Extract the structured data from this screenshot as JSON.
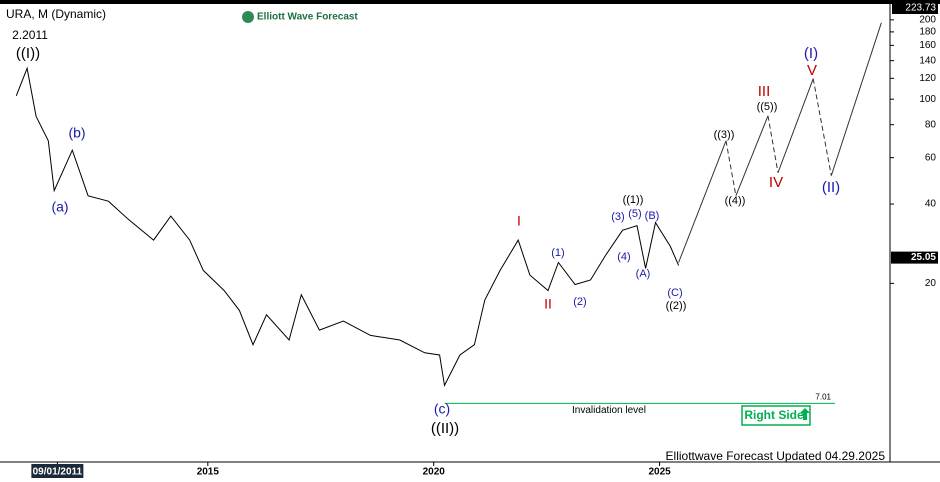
{
  "chart_data": {
    "type": "line",
    "title": "URA, M (Dynamic)",
    "brand": "Elliott Wave Forecast",
    "footer": "Elliottwave Forecast Updated 04.29.2025",
    "badge": "Right Side",
    "log_scale": true,
    "x": [
      2010.76,
      2011.0,
      2011.2,
      2011.47,
      2011.6,
      2012.0,
      2012.35,
      2012.8,
      2013.24,
      2013.8,
      2014.18,
      2014.6,
      2014.9,
      2015.36,
      2015.7,
      2016.0,
      2016.3,
      2016.8,
      2017.07,
      2017.47,
      2018.0,
      2018.6,
      2019.25,
      2019.8,
      2020.13,
      2020.24,
      2020.58,
      2020.9,
      2021.13,
      2021.47,
      2021.87,
      2022.13,
      2022.53,
      2022.76,
      2023.13,
      2023.47,
      2023.8,
      2024.18,
      2024.5,
      2024.69,
      2024.91,
      2025.24,
      2025.42
    ],
    "series": [
      {
        "color": "#000000",
        "values": [
          103,
          131,
          86,
          69.5,
          45,
          64,
          43,
          41,
          35,
          29.2,
          36,
          29.2,
          22.4,
          18.8,
          15.8,
          11.7,
          15.2,
          12.2,
          18.1,
          13.3,
          14.4,
          12.7,
          12.2,
          10.9,
          10.7,
          8.2,
          10.7,
          11.7,
          17.3,
          22.4,
          29.2,
          21.5,
          18.8,
          24.0,
          19.8,
          20.6,
          25.5,
          31.8,
          33.1,
          22.8,
          34.0,
          27.6,
          23.4
        ]
      }
    ],
    "projection": {
      "color": "#333333",
      "x": [
        2025.42,
        2026.47,
        2026.69,
        2027.4,
        2027.62,
        2028.4,
        2028.8,
        2029.91
      ],
      "values": [
        24.0,
        69.5,
        43.0,
        86.5,
        52.6,
        119.6,
        51.3,
        195
      ]
    },
    "xlim": [
      2010.4,
      2030.1
    ],
    "xticks": [
      {
        "value": 2011.67,
        "label": "09/01/2011"
      },
      2015,
      2020,
      2025
    ],
    "ylim": [
      4.2,
      223.73
    ],
    "yticks": [
      20,
      40,
      60,
      80,
      100,
      120,
      140,
      160,
      180,
      200
    ],
    "last_price": 25.05,
    "invalidation": {
      "value": 7.01,
      "label": "Invalidation level",
      "color": "#00b050"
    },
    "annotations": [
      {
        "text": "2.2011",
        "color": "#000000"
      },
      {
        "text": "((I))",
        "color": "#000000"
      },
      {
        "text": "(b)",
        "color": "#1a1aa6"
      },
      {
        "text": "(a)",
        "color": "#1a1aa6"
      },
      {
        "text": "I",
        "color": "#c00000"
      },
      {
        "text": "II",
        "color": "#c00000"
      },
      {
        "text": "(1)",
        "color": "#1a1aa6"
      },
      {
        "text": "(2)",
        "color": "#1a1aa6"
      },
      {
        "text": "(3)",
        "color": "#1a1aa6"
      },
      {
        "text": "(4)",
        "color": "#1a1aa6"
      },
      {
        "text": "(5)",
        "color": "#1a1aa6"
      },
      {
        "text": "((1))",
        "color": "#000000"
      },
      {
        "text": "(B)",
        "color": "#1a1aa6"
      },
      {
        "text": "(A)",
        "color": "#1a1aa6"
      },
      {
        "text": "(C)",
        "color": "#1a1aa6"
      },
      {
        "text": "((2))",
        "color": "#000000"
      },
      {
        "text": "((3))",
        "color": "#000000"
      },
      {
        "text": "((4))",
        "color": "#000000"
      },
      {
        "text": "III",
        "color": "#c00000"
      },
      {
        "text": "((5))",
        "color": "#000000"
      },
      {
        "text": "IV",
        "color": "#c00000"
      },
      {
        "text": "(I)",
        "color": "#1a1aa6"
      },
      {
        "text": "V",
        "color": "#c00000"
      },
      {
        "text": "(II)",
        "color": "#1a1aa6"
      },
      {
        "text": "(c)",
        "color": "#1a1aa6"
      },
      {
        "text": "((II))",
        "color": "#000000"
      }
    ]
  }
}
